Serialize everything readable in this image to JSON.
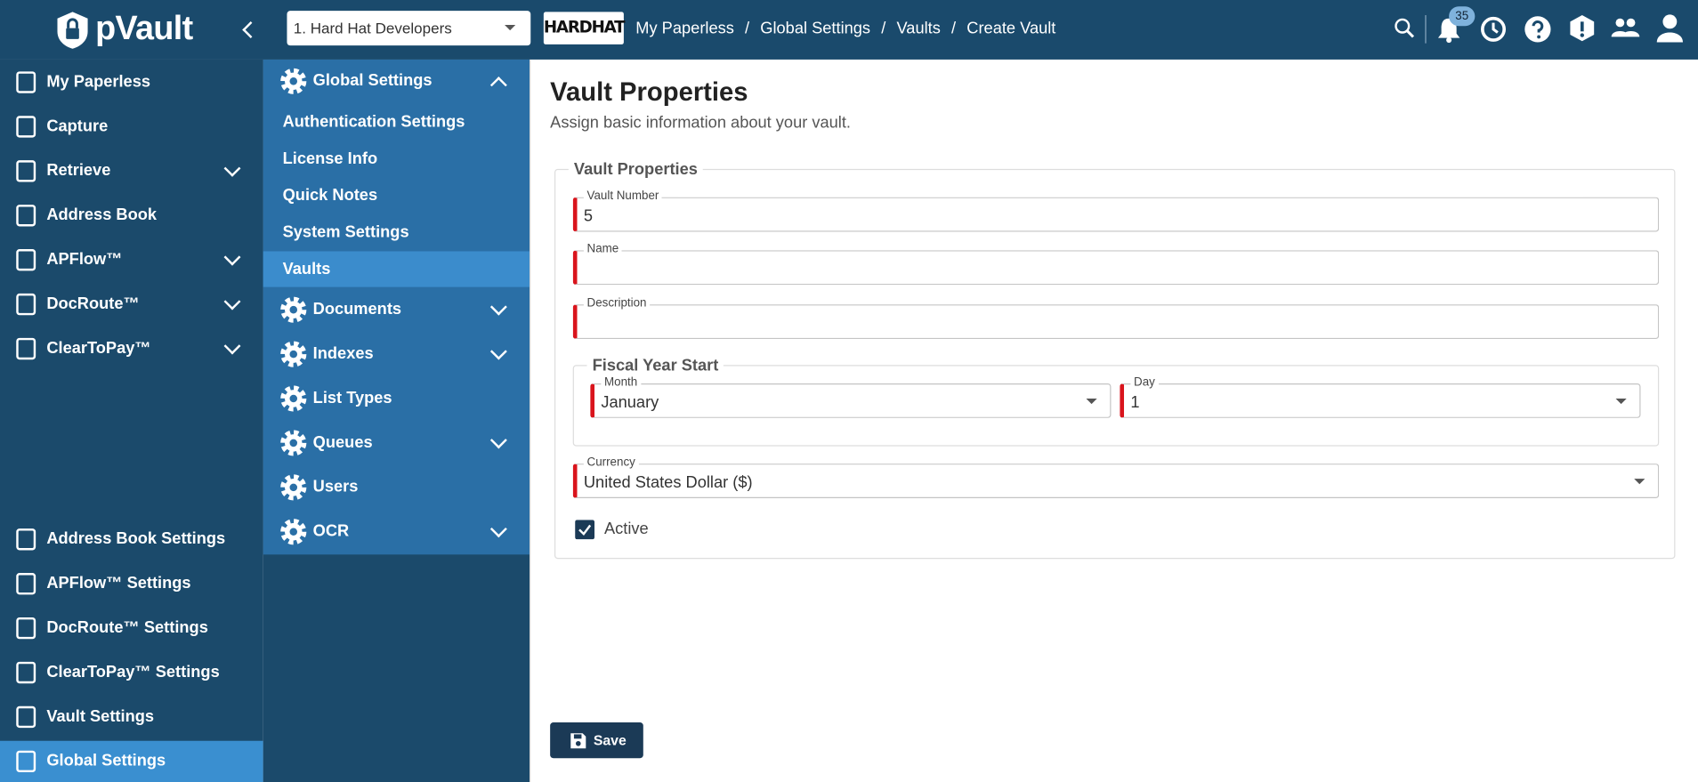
{
  "header": {
    "brand": "pVault",
    "organization": "1. Hard Hat Developers",
    "logo": "HARDHAT",
    "breadcrumb_separator": "/",
    "breadcrumbs": [
      "My Paperless",
      "Global Settings",
      "Vaults",
      "Create Vault"
    ],
    "notification_count": 35
  },
  "sidebar": {
    "top": [
      "My Paperless",
      "Capture",
      "Retrieve",
      "Address Book",
      "APFlow™",
      "DocRoute™",
      "ClearToPay™"
    ],
    "bottom": [
      "Address Book Settings",
      "APFlow™ Settings",
      "DocRoute™ Settings",
      "ClearToPay™ Settings",
      "Vault Settings",
      "Global Settings"
    ]
  },
  "settings_nav": {
    "group": "Global Settings",
    "children": [
      "Authentication Settings",
      "License Info",
      "Quick Notes",
      "System Settings",
      "Vaults"
    ],
    "groups": [
      "Documents",
      "Indexes",
      "List Types",
      "Queues",
      "Users",
      "OCR"
    ]
  },
  "form": {
    "title": "Vault Properties",
    "subtitle": "Assign basic information about your vault.",
    "section": "Vault Properties",
    "vault_number": {
      "label": "Vault Number",
      "value": "5"
    },
    "name": {
      "label": "Name"
    },
    "description": {
      "label": "Description"
    },
    "fiscal_year": {
      "title": "Fiscal Year Start",
      "month": {
        "label": "Month",
        "value": "January"
      },
      "day": {
        "label": "Day",
        "value": "1"
      }
    },
    "currency": {
      "label": "Currency",
      "value": "United States Dollar ($)"
    },
    "active_label": "Active",
    "save": "Save"
  }
}
